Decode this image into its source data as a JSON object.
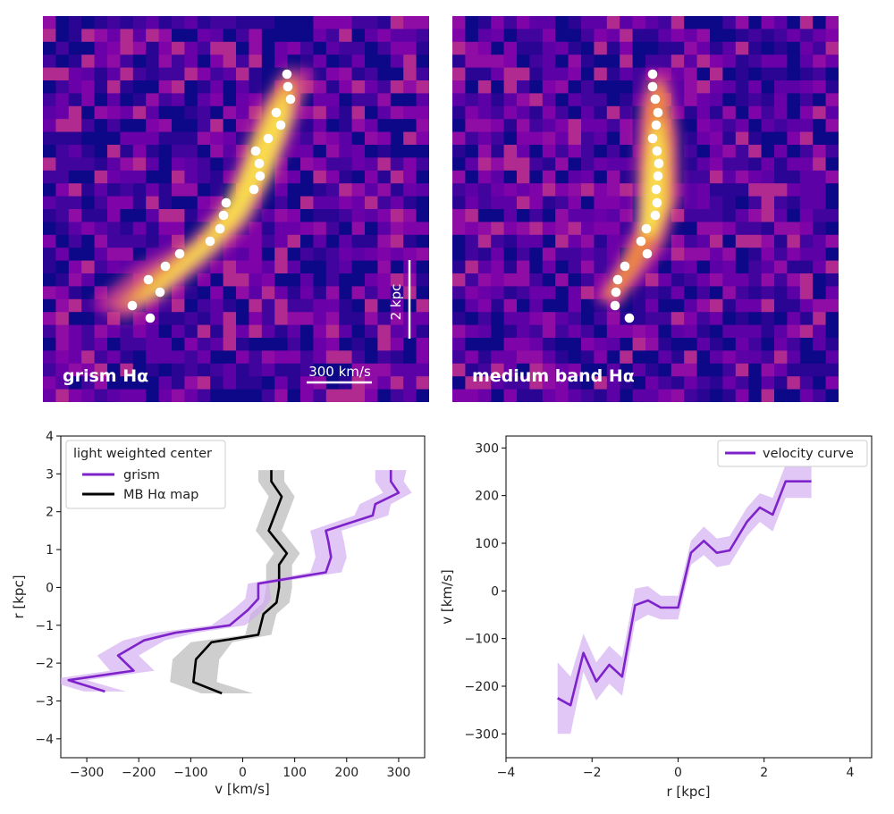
{
  "colors": {
    "grism": "#7e22c9",
    "grism_band": "#cfa9ef",
    "mb": "#000000",
    "mb_band": "#b4b4b4",
    "point": "#ffffff"
  },
  "images": {
    "left_label": "grism Hα",
    "right_label": "medium band Hα",
    "velocity_scalebar_label": "300 km/s",
    "distance_scalebar_label": "2 kpc",
    "colormap": "plasma"
  },
  "chart_data": [
    {
      "type": "line",
      "panel": "bottom-left",
      "xlabel": "v [km/s]",
      "ylabel": "r [kpc]",
      "xlim": [
        -350,
        350
      ],
      "ylim": [
        -4.5,
        4.0
      ],
      "xticks": [
        -300,
        -200,
        -100,
        0,
        100,
        200,
        300
      ],
      "yticks": [
        -4,
        -3,
        -2,
        -1,
        0,
        1,
        2,
        3,
        4
      ],
      "grid": false,
      "legend_title": "light weighted center",
      "legend_position": "top-left",
      "series": [
        {
          "name": "grism",
          "color": "#7e22c9",
          "points": [
            {
              "v": 285,
              "r": 3.1,
              "lo": 255,
              "hi": 315
            },
            {
              "v": 285,
              "r": 2.8,
              "lo": 255,
              "hi": 310
            },
            {
              "v": 300,
              "r": 2.5,
              "lo": 270,
              "hi": 325
            },
            {
              "v": 255,
              "r": 2.2,
              "lo": 225,
              "hi": 285
            },
            {
              "v": 250,
              "r": 1.9,
              "lo": 215,
              "hi": 280
            },
            {
              "v": 160,
              "r": 1.5,
              "lo": 130,
              "hi": 190
            },
            {
              "v": 165,
              "r": 1.2,
              "lo": 135,
              "hi": 195
            },
            {
              "v": 170,
              "r": 0.8,
              "lo": 140,
              "hi": 200
            },
            {
              "v": 160,
              "r": 0.4,
              "lo": 130,
              "hi": 190
            },
            {
              "v": 30,
              "r": 0.1,
              "lo": 10,
              "hi": 50
            },
            {
              "v": 30,
              "r": -0.3,
              "lo": 5,
              "hi": 55
            },
            {
              "v": 10,
              "r": -0.6,
              "lo": -20,
              "hi": 40
            },
            {
              "v": -25,
              "r": -1.0,
              "lo": -60,
              "hi": 5
            },
            {
              "v": -130,
              "r": -1.2,
              "lo": -170,
              "hi": -90
            },
            {
              "v": -190,
              "r": -1.4,
              "lo": -230,
              "hi": -150
            },
            {
              "v": -240,
              "r": -1.8,
              "lo": -280,
              "hi": -200
            },
            {
              "v": -210,
              "r": -2.2,
              "lo": -255,
              "hi": -170
            },
            {
              "v": -335,
              "r": -2.45,
              "lo": -380,
              "hi": -300
            },
            {
              "v": -265,
              "r": -2.75,
              "lo": -305,
              "hi": -225
            }
          ]
        },
        {
          "name": "MB Hα map",
          "color": "#000000",
          "points": [
            {
              "v": 55,
              "r": 3.1,
              "lo": 30,
              "hi": 80
            },
            {
              "v": 55,
              "r": 2.8,
              "lo": 30,
              "hi": 80
            },
            {
              "v": 75,
              "r": 2.4,
              "lo": 50,
              "hi": 100
            },
            {
              "v": 50,
              "r": 1.5,
              "lo": 25,
              "hi": 75
            },
            {
              "v": 85,
              "r": 0.9,
              "lo": 60,
              "hi": 110
            },
            {
              "v": 70,
              "r": 0.6,
              "lo": 45,
              "hi": 95
            },
            {
              "v": 70,
              "r": 0.0,
              "lo": 45,
              "hi": 95
            },
            {
              "v": 65,
              "r": -0.4,
              "lo": 40,
              "hi": 90
            },
            {
              "v": 40,
              "r": -0.7,
              "lo": 15,
              "hi": 65
            },
            {
              "v": 30,
              "r": -1.25,
              "lo": 5,
              "hi": 55
            },
            {
              "v": -60,
              "r": -1.45,
              "lo": -100,
              "hi": -20
            },
            {
              "v": -90,
              "r": -1.9,
              "lo": -135,
              "hi": -45
            },
            {
              "v": -95,
              "r": -2.5,
              "lo": -140,
              "hi": -50
            },
            {
              "v": -40,
              "r": -2.8,
              "lo": -80,
              "hi": 20
            }
          ]
        }
      ]
    },
    {
      "type": "line",
      "panel": "bottom-right",
      "xlabel": "r [kpc]",
      "ylabel": "v [km/s]",
      "xlim": [
        -4.0,
        4.5
      ],
      "ylim": [
        -350,
        325
      ],
      "xticks": [
        -4,
        -2,
        0,
        2,
        4
      ],
      "yticks": [
        -300,
        -200,
        -100,
        0,
        100,
        200,
        300
      ],
      "grid": false,
      "legend_position": "top-right",
      "series": [
        {
          "name": "velocity curve",
          "color": "#7e22c9",
          "points": [
            {
              "r": -2.8,
              "v": -225,
              "lo": -300,
              "hi": -150
            },
            {
              "r": -2.5,
              "v": -240,
              "lo": -300,
              "hi": -180
            },
            {
              "r": -2.2,
              "v": -130,
              "lo": -170,
              "hi": -90
            },
            {
              "r": -1.9,
              "v": -190,
              "lo": -230,
              "hi": -150
            },
            {
              "r": -1.6,
              "v": -155,
              "lo": -195,
              "hi": -115
            },
            {
              "r": -1.3,
              "v": -180,
              "lo": -220,
              "hi": -140
            },
            {
              "r": -1.0,
              "v": -30,
              "lo": -65,
              "hi": 5
            },
            {
              "r": -0.7,
              "v": -20,
              "lo": -50,
              "hi": 10
            },
            {
              "r": -0.4,
              "v": -35,
              "lo": -60,
              "hi": -10
            },
            {
              "r": 0.0,
              "v": -35,
              "lo": -60,
              "hi": -10
            },
            {
              "r": 0.3,
              "v": 80,
              "lo": 55,
              "hi": 105
            },
            {
              "r": 0.6,
              "v": 105,
              "lo": 75,
              "hi": 135
            },
            {
              "r": 0.9,
              "v": 80,
              "lo": 50,
              "hi": 110
            },
            {
              "r": 1.2,
              "v": 85,
              "lo": 55,
              "hi": 115
            },
            {
              "r": 1.6,
              "v": 145,
              "lo": 115,
              "hi": 175
            },
            {
              "r": 1.9,
              "v": 175,
              "lo": 145,
              "hi": 205
            },
            {
              "r": 2.2,
              "v": 160,
              "lo": 125,
              "hi": 195
            },
            {
              "r": 2.5,
              "v": 230,
              "lo": 195,
              "hi": 265
            },
            {
              "r": 3.1,
              "v": 230,
              "lo": 195,
              "hi": 265
            }
          ]
        }
      ]
    }
  ]
}
